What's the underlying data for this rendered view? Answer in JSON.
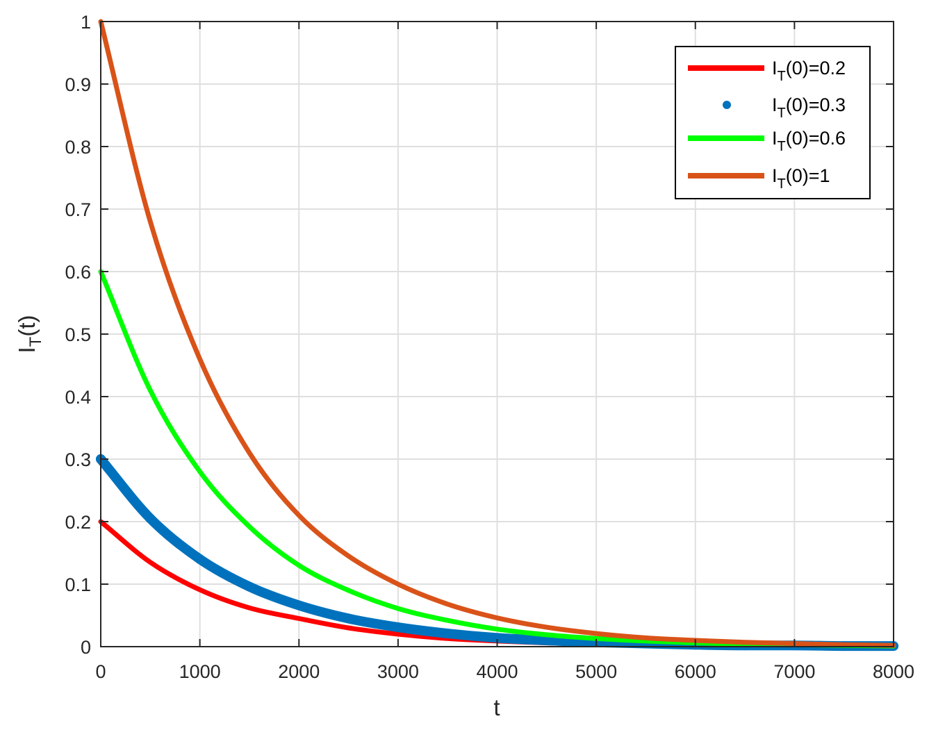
{
  "chart_data": {
    "type": "line",
    "title": "",
    "xlabel": "t",
    "ylabel": {
      "main": "I",
      "sub": "T",
      "tail": "(t)"
    },
    "xlim": [
      0,
      8000
    ],
    "ylim": [
      0,
      1
    ],
    "xticks": [
      0,
      1000,
      2000,
      3000,
      4000,
      5000,
      6000,
      7000,
      8000
    ],
    "yticks": [
      0,
      0.1,
      0.2,
      0.3,
      0.4,
      0.5,
      0.6,
      0.7,
      0.8,
      0.9,
      1
    ],
    "grid": true,
    "legend_position": "top-right",
    "series": [
      {
        "name": "I_T(0)=0.2",
        "legend": {
          "main": "I",
          "sub": "T",
          "tail": "(0)=0.2"
        },
        "style": "line",
        "color": "#ff0000",
        "x": [
          0,
          500,
          1000,
          1500,
          2000,
          2500,
          3000,
          3500,
          4000,
          4500,
          5000,
          5500,
          6000,
          6500,
          7000,
          7500,
          8000
        ],
        "y": [
          0.2,
          0.135,
          0.091,
          0.062,
          0.045,
          0.03,
          0.02,
          0.013,
          0.009,
          0.006,
          0.004,
          0.003,
          0.002,
          0.001,
          0.001,
          0.0,
          0.0
        ]
      },
      {
        "name": "I_T(0)=0.3",
        "legend": {
          "main": "I",
          "sub": "T",
          "tail": "(0)=0.3"
        },
        "style": "dots",
        "color": "#0072bd",
        "x": [
          0,
          500,
          1000,
          1500,
          2000,
          2500,
          3000,
          3500,
          4000,
          4500,
          5000,
          5500,
          6000,
          6500,
          7000,
          7500,
          8000
        ],
        "y": [
          0.3,
          0.205,
          0.14,
          0.096,
          0.066,
          0.045,
          0.031,
          0.021,
          0.014,
          0.01,
          0.007,
          0.005,
          0.003,
          0.002,
          0.002,
          0.001,
          0.001
        ]
      },
      {
        "name": "I_T(0)=0.6",
        "legend": {
          "main": "I",
          "sub": "T",
          "tail": "(0)=0.6"
        },
        "style": "line",
        "color": "#00ff00",
        "x": [
          0,
          500,
          1000,
          1500,
          2000,
          2500,
          3000,
          3500,
          4000,
          4500,
          5000,
          5500,
          6000,
          6500,
          7000,
          7500,
          8000
        ],
        "y": [
          0.6,
          0.41,
          0.28,
          0.192,
          0.13,
          0.09,
          0.061,
          0.042,
          0.028,
          0.019,
          0.013,
          0.009,
          0.006,
          0.004,
          0.003,
          0.002,
          0.001
        ]
      },
      {
        "name": "I_T(0)=1",
        "legend": {
          "main": "I",
          "sub": "T",
          "tail": "(0)=1"
        },
        "style": "line",
        "color": "#d95319",
        "x": [
          0,
          500,
          1000,
          1500,
          2000,
          2500,
          3000,
          3500,
          4000,
          4500,
          5000,
          5500,
          6000,
          6500,
          7000,
          7500,
          8000
        ],
        "y": [
          1.0,
          0.68,
          0.46,
          0.31,
          0.21,
          0.145,
          0.1,
          0.068,
          0.046,
          0.031,
          0.021,
          0.014,
          0.01,
          0.007,
          0.005,
          0.003,
          0.002
        ]
      }
    ]
  }
}
